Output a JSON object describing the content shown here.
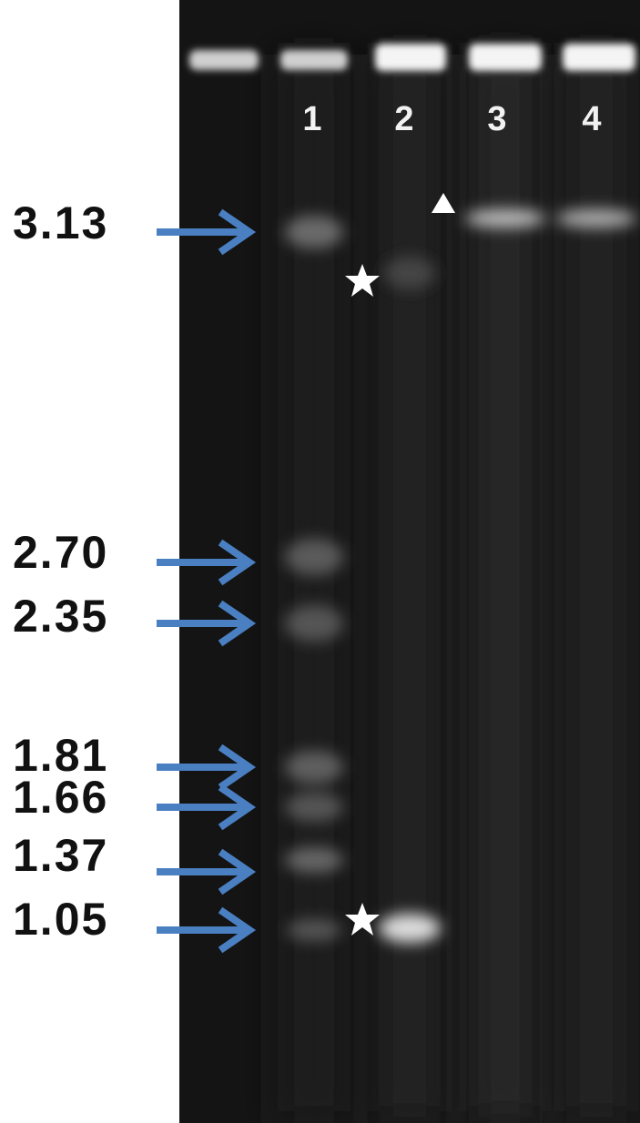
{
  "lanes": [
    "1",
    "2",
    "3",
    "4"
  ],
  "markers": [
    "3.13",
    "2.70",
    "2.35",
    "1.81",
    "1.66",
    "1.37",
    "1.05"
  ]
}
